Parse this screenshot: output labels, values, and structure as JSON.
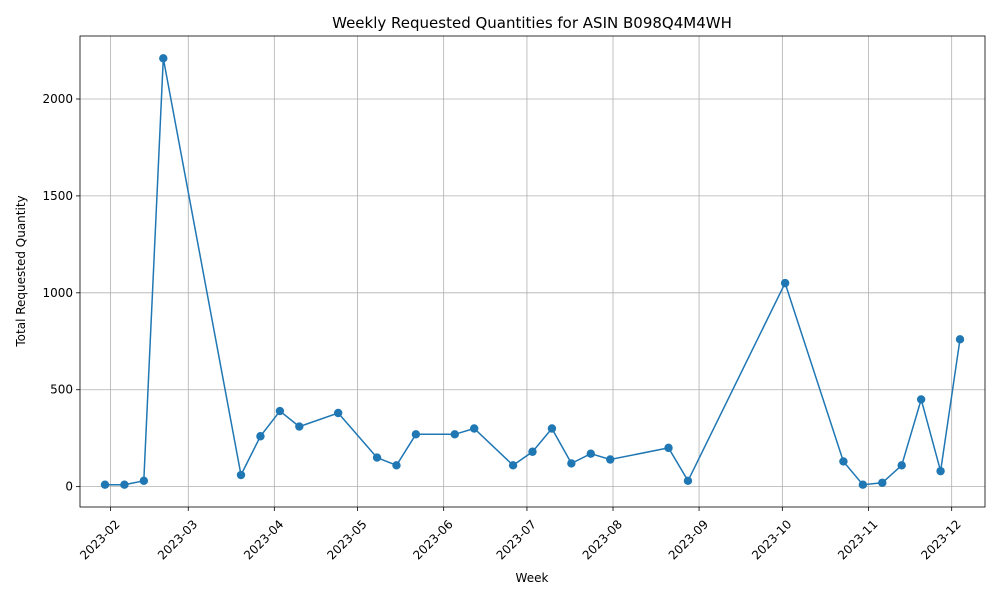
{
  "chart_data": {
    "type": "line",
    "title": "Weekly Requested Quantities for ASIN B098Q4M4WH",
    "xlabel": "Week",
    "ylabel": "Total Requested Quantity",
    "x_type": "date",
    "xlim": [
      "2023-01-21",
      "2023-12-13"
    ],
    "ylim": [
      -105,
      2325
    ],
    "grid": true,
    "legend": "none",
    "colors": {
      "series": "#1f77b4",
      "grid": "#b0b0b0"
    },
    "x_ticks": [
      "2023-02-01",
      "2023-03-01",
      "2023-04-01",
      "2023-05-01",
      "2023-06-01",
      "2023-07-01",
      "2023-08-01",
      "2023-09-01",
      "2023-10-01",
      "2023-11-01",
      "2023-12-01"
    ],
    "x_tick_labels": [
      "2023-02",
      "2023-03",
      "2023-04",
      "2023-05",
      "2023-06",
      "2023-07",
      "2023-08",
      "2023-09",
      "2023-10",
      "2023-11",
      "2023-12"
    ],
    "y_ticks": [
      0,
      500,
      1000,
      1500,
      2000
    ],
    "y_tick_labels": [
      "0",
      "500",
      "1000",
      "1500",
      "2000"
    ],
    "series": [
      {
        "x": [
          "2023-01-30",
          "2023-02-06",
          "2023-02-13",
          "2023-02-20",
          "2023-03-20",
          "2023-03-27",
          "2023-04-03",
          "2023-04-10",
          "2023-04-24",
          "2023-05-08",
          "2023-05-15",
          "2023-05-22",
          "2023-06-05",
          "2023-06-12",
          "2023-06-26",
          "2023-07-03",
          "2023-07-10",
          "2023-07-17",
          "2023-07-24",
          "2023-07-31",
          "2023-08-21",
          "2023-08-28",
          "2023-10-02",
          "2023-10-23",
          "2023-10-30",
          "2023-11-06",
          "2023-11-13",
          "2023-11-20",
          "2023-11-27",
          "2023-12-04"
        ],
        "values": [
          10,
          10,
          30,
          2210,
          60,
          260,
          390,
          310,
          380,
          150,
          110,
          270,
          270,
          300,
          110,
          180,
          300,
          120,
          170,
          140,
          200,
          30,
          1050,
          130,
          10,
          20,
          110,
          450,
          80,
          760
        ]
      }
    ]
  }
}
